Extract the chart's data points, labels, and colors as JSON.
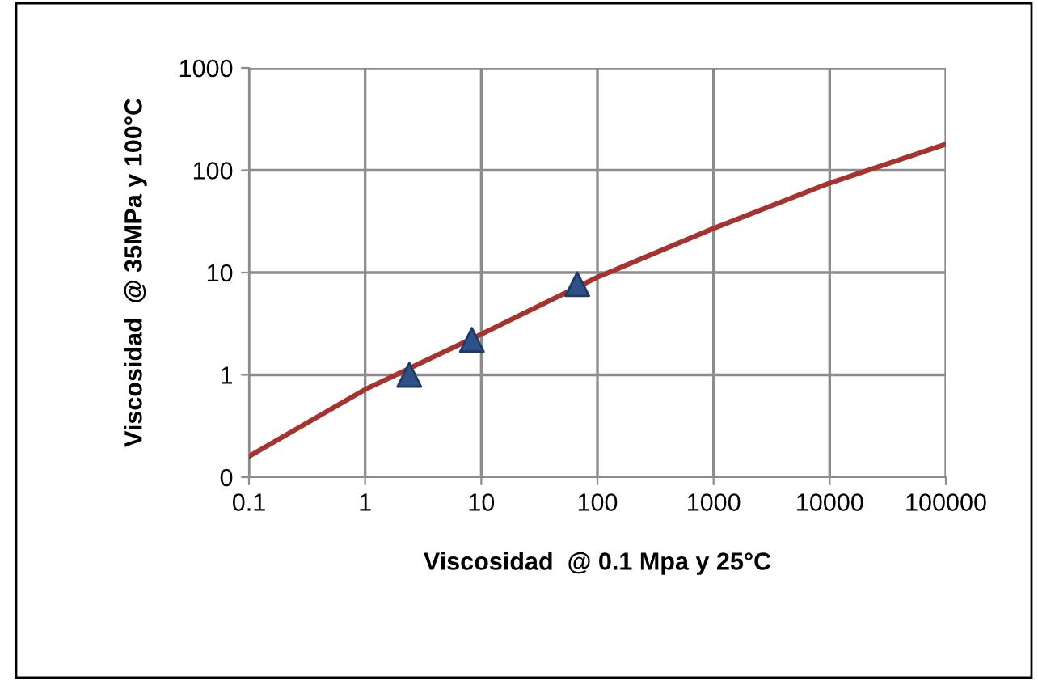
{
  "chart_data": {
    "type": "line",
    "xlabel": "Viscosidad  @ 0.1 Mpa y 25°C",
    "ylabel": "Viscosidad  @ 35MPa y 100°C",
    "log": "xy",
    "grid": true,
    "xlim": [
      0.1,
      100000
    ],
    "xticks": [
      0.1,
      1,
      10,
      100,
      1000,
      10000,
      100000
    ],
    "ylim": [
      0.1,
      1000
    ],
    "yticks": [
      {
        "value": 0.1,
        "label": "0"
      },
      1,
      10,
      100,
      1000
    ],
    "series": [
      {
        "color": "#a5332f",
        "marker": "none",
        "line_style": "solid",
        "x": [
          0.1,
          1,
          10,
          100,
          1000,
          10000,
          100000
        ],
        "values": [
          0.16,
          0.72,
          2.5,
          9,
          27,
          75,
          180
        ]
      },
      {
        "type": "scatter",
        "color": "#2e5287",
        "marker": "triangle",
        "x": [
          2.4,
          8.3,
          67
        ],
        "values": [
          1.0,
          2.2,
          7.7
        ]
      }
    ]
  }
}
